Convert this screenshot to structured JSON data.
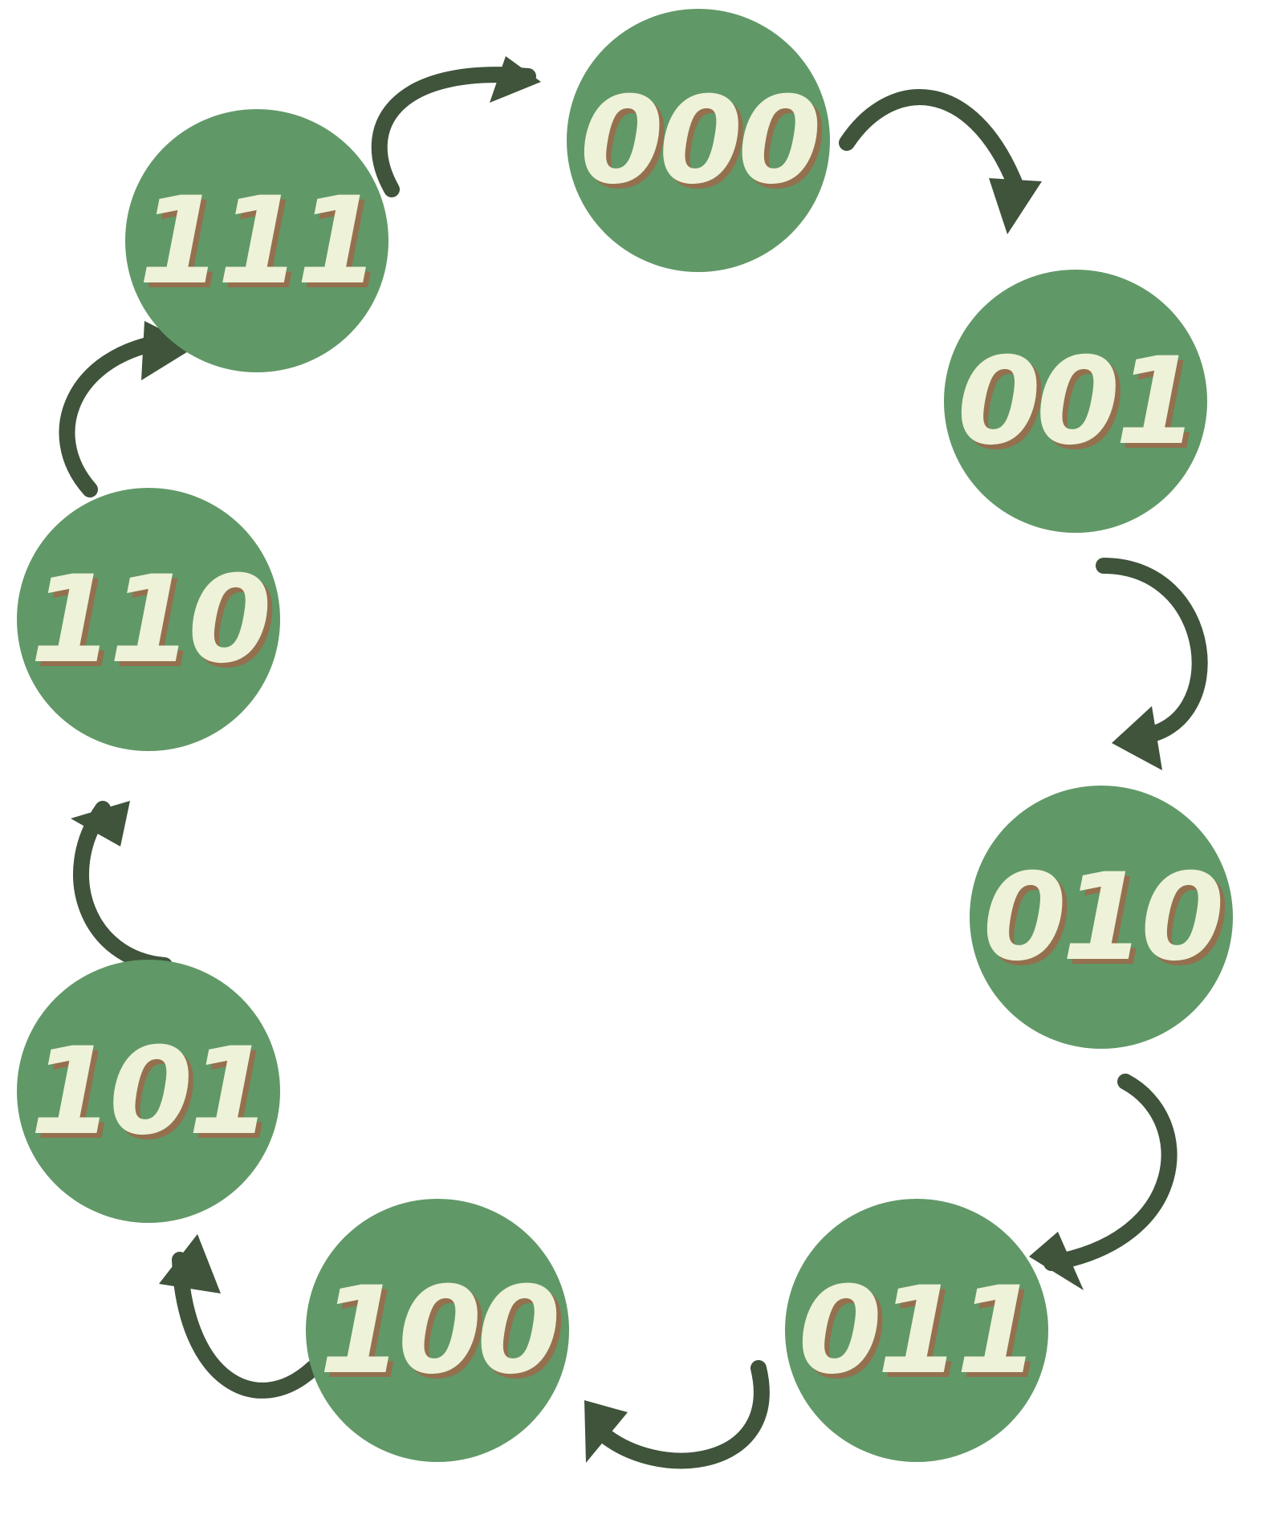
{
  "diagram": {
    "colors": {
      "circle": "#619867",
      "label": "#eef2d8",
      "label_shadow": "#94704f",
      "arrow": "#3f543b",
      "background": "#ffffff"
    },
    "nodes": [
      {
        "id": "n000",
        "label": "000"
      },
      {
        "id": "n001",
        "label": "001"
      },
      {
        "id": "n010",
        "label": "010"
      },
      {
        "id": "n011",
        "label": "011"
      },
      {
        "id": "n100",
        "label": "100"
      },
      {
        "id": "n101",
        "label": "101"
      },
      {
        "id": "n110",
        "label": "110"
      },
      {
        "id": "n111",
        "label": "111"
      }
    ],
    "edges": [
      {
        "from": "000",
        "to": "001"
      },
      {
        "from": "001",
        "to": "010"
      },
      {
        "from": "010",
        "to": "011"
      },
      {
        "from": "011",
        "to": "100"
      },
      {
        "from": "100",
        "to": "101"
      },
      {
        "from": "101",
        "to": "110"
      },
      {
        "from": "110",
        "to": "111"
      },
      {
        "from": "111",
        "to": "000"
      }
    ]
  }
}
